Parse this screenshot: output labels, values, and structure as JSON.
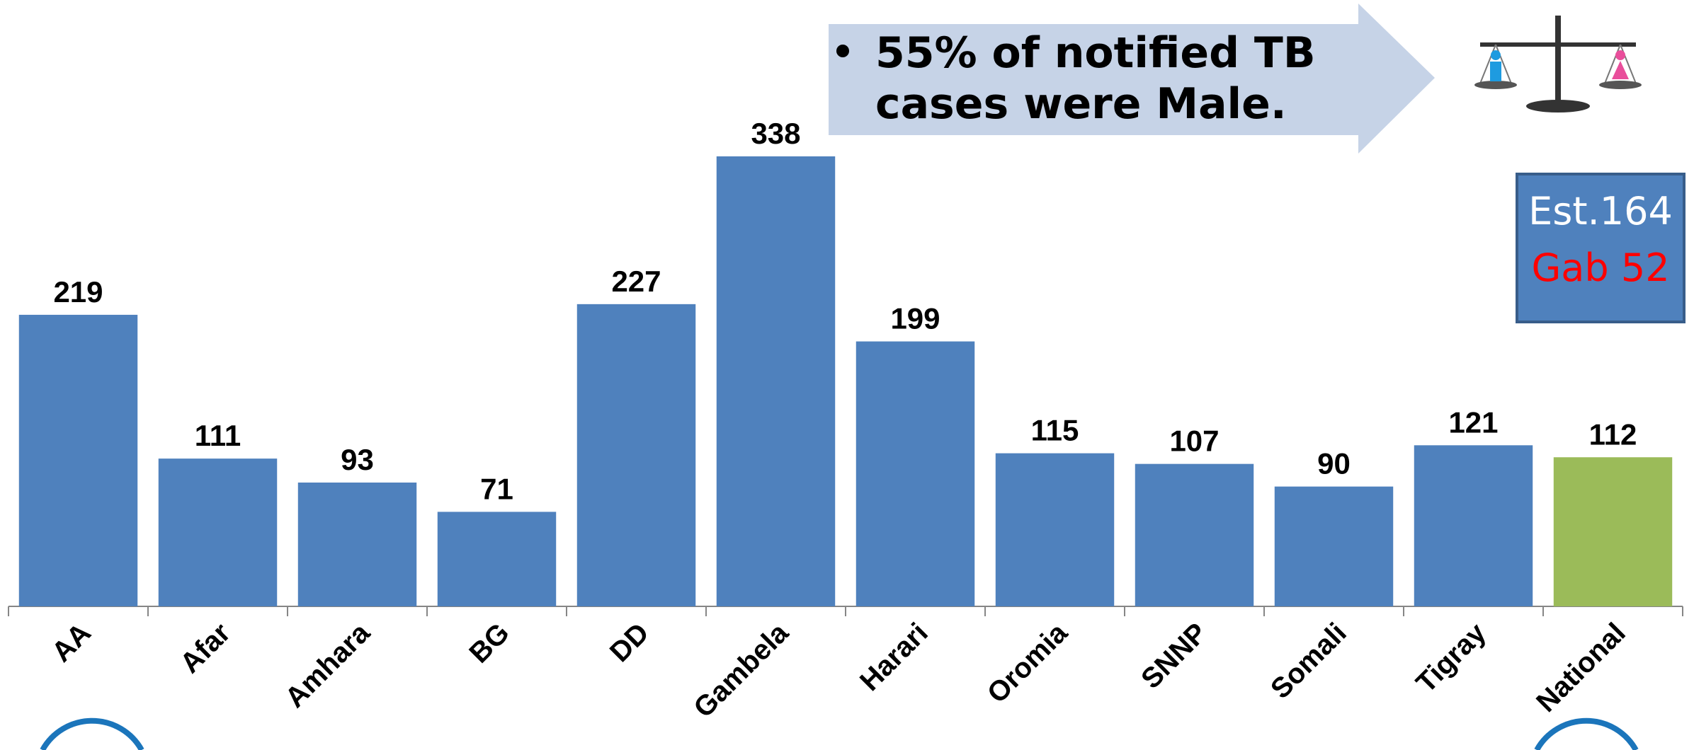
{
  "chart_data": {
    "type": "bar",
    "categories": [
      "AA",
      "Afar",
      "Amhara",
      "BG",
      "DD",
      "Gambela",
      "Harari",
      "Oromia",
      "SNNP",
      "Somali",
      "Tigray",
      "National"
    ],
    "values": [
      219,
      111,
      93,
      71,
      227,
      338,
      199,
      115,
      107,
      90,
      121,
      112
    ],
    "colors": [
      "#4f81bd",
      "#4f81bd",
      "#4f81bd",
      "#4f81bd",
      "#4f81bd",
      "#4f81bd",
      "#4f81bd",
      "#4f81bd",
      "#4f81bd",
      "#4f81bd",
      "#4f81bd",
      "#9bbb59"
    ],
    "annotation_lines": [
      "55% of notified TB",
      "cases were Male."
    ],
    "box_lines": [
      {
        "text": "Est.164",
        "color": "#ffffff"
      },
      {
        "text": "Gab 52",
        "color": "#ff0000"
      }
    ]
  }
}
